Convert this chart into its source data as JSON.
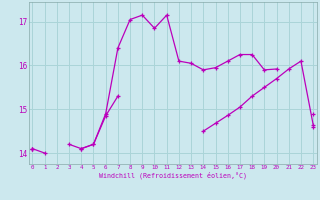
{
  "xlabel": "Windchill (Refroidissement éolien,°C)",
  "background_color": "#cce8ee",
  "grid_color": "#aad4d8",
  "line_color": "#bb00bb",
  "x": [
    0,
    1,
    2,
    3,
    4,
    5,
    6,
    7,
    8,
    9,
    10,
    11,
    12,
    13,
    14,
    15,
    16,
    17,
    18,
    19,
    20,
    21,
    22,
    23
  ],
  "line1": [
    14.1,
    14.0,
    null,
    14.2,
    14.1,
    14.2,
    14.85,
    15.3,
    null,
    null,
    null,
    null,
    null,
    null,
    null,
    null,
    null,
    null,
    null,
    null,
    null,
    null,
    null,
    14.6
  ],
  "line2": [
    14.1,
    null,
    null,
    null,
    14.1,
    14.2,
    14.9,
    16.4,
    17.05,
    17.15,
    16.85,
    17.15,
    16.1,
    16.05,
    15.9,
    15.95,
    16.1,
    16.25,
    16.25,
    15.9,
    15.92,
    null,
    null,
    14.9
  ],
  "line3": [
    14.1,
    null,
    null,
    null,
    null,
    null,
    null,
    null,
    null,
    null,
    null,
    null,
    null,
    null,
    14.5,
    14.68,
    14.86,
    15.05,
    15.3,
    15.5,
    15.7,
    15.92,
    16.1,
    14.65
  ],
  "ylim": [
    13.75,
    17.45
  ],
  "yticks": [
    14,
    15,
    16,
    17
  ],
  "xticks": [
    0,
    1,
    2,
    3,
    4,
    5,
    6,
    7,
    8,
    9,
    10,
    11,
    12,
    13,
    14,
    15,
    16,
    17,
    18,
    19,
    20,
    21,
    22,
    23
  ],
  "xlim": [
    -0.3,
    23.3
  ]
}
